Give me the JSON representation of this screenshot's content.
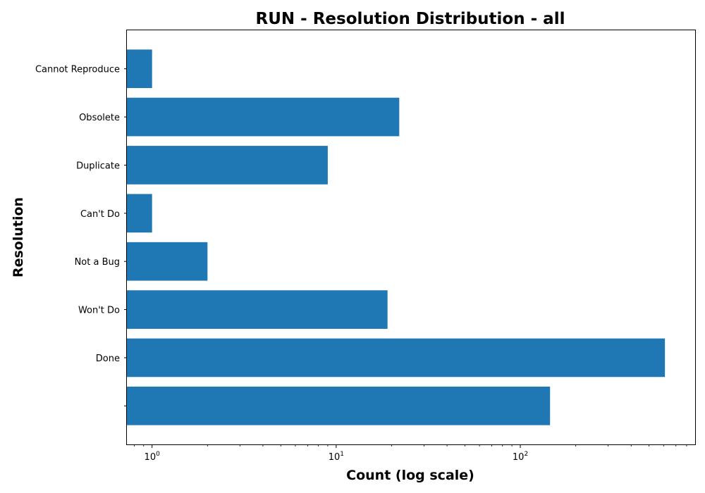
{
  "chart_data": {
    "type": "bar",
    "orientation": "horizontal",
    "title": "RUN - Resolution Distribution - all",
    "xlabel": "Count (log scale)",
    "ylabel": "Resolution",
    "x_scale": "log",
    "xlim": [
      0.73,
      890
    ],
    "x_ticks": [
      {
        "value": 1,
        "base": "10",
        "exp": "0"
      },
      {
        "value": 10,
        "base": "10",
        "exp": "1"
      },
      {
        "value": 100,
        "base": "10",
        "exp": "2"
      }
    ],
    "categories": [
      "",
      "Done",
      "Won't Do",
      "Not a Bug",
      "Can't Do",
      "Duplicate",
      "Obsolete",
      "Cannot Reproduce"
    ],
    "values": [
      145,
      610,
      19,
      2,
      1,
      9,
      22,
      1
    ],
    "bar_color": "#1f77b4",
    "grid": false,
    "legend": "none"
  }
}
